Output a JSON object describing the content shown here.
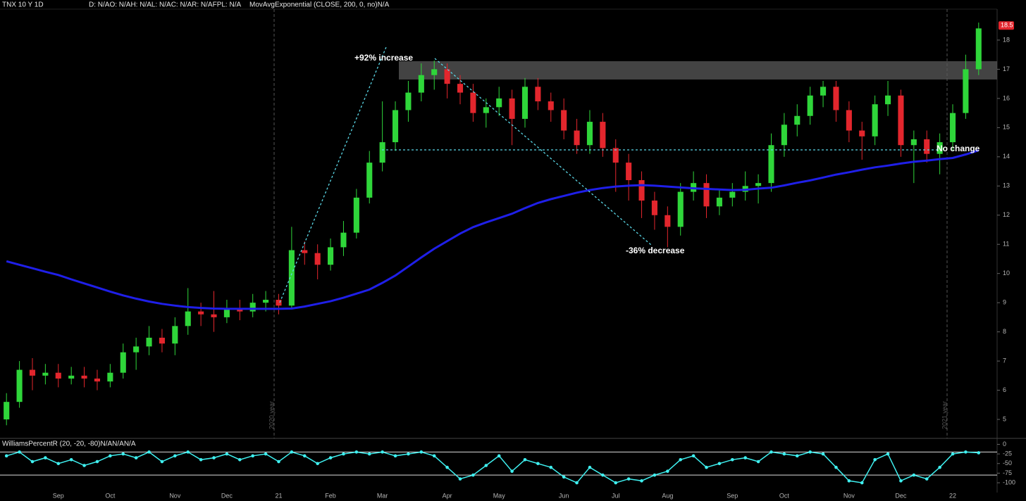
{
  "chart_data": [
    {
      "type": "candlestick",
      "title": "TNX 10 Y 1D",
      "info": "D: N/AO: N/AH: N/AL: N/AC: N/AR: N/AFPL: N/A",
      "annotations": [
        "+92% increase",
        "-36% decrease",
        "No change"
      ],
      "year_labels": [
        "2020 year",
        "2021 year"
      ],
      "last_price": 18.5,
      "up_color": "#2fd63a",
      "down_color": "#e3262d",
      "categories": [
        null,
        null,
        null,
        null,
        "Sep",
        null,
        null,
        null,
        "Oct",
        null,
        null,
        null,
        null,
        "Nov",
        null,
        null,
        null,
        "Dec",
        null,
        null,
        null,
        "21",
        null,
        null,
        null,
        "Feb",
        null,
        null,
        null,
        "Mar",
        null,
        null,
        null,
        null,
        "Apr",
        null,
        null,
        null,
        "May",
        null,
        null,
        null,
        null,
        "Jun",
        null,
        null,
        null,
        "Jul",
        null,
        null,
        null,
        "Aug",
        null,
        null,
        null,
        null,
        "Sep",
        null,
        null,
        null,
        "Oct",
        null,
        null,
        null,
        null,
        "Nov",
        null,
        null,
        null,
        "Dec",
        null,
        null,
        null,
        "22",
        null,
        null
      ],
      "open": [
        5.0,
        5.6,
        6.7,
        6.5,
        6.6,
        6.4,
        6.5,
        6.4,
        6.3,
        6.6,
        7.3,
        7.5,
        7.8,
        7.6,
        8.2,
        8.7,
        8.6,
        8.5,
        8.8,
        8.7,
        9.0,
        9.1,
        8.9,
        10.8,
        10.7,
        10.3,
        10.9,
        11.4,
        12.6,
        13.8,
        14.5,
        15.6,
        16.2,
        16.8,
        17.0,
        16.5,
        16.2,
        15.5,
        15.7,
        16.0,
        15.3,
        16.4,
        15.9,
        15.6,
        14.9,
        14.4,
        15.2,
        14.3,
        13.8,
        13.2,
        12.5,
        12.0,
        11.6,
        12.8,
        13.1,
        12.3,
        12.6,
        12.8,
        13.0,
        13.1,
        14.4,
        15.1,
        15.4,
        16.1,
        16.4,
        15.6,
        14.9,
        14.7,
        15.8,
        16.1,
        14.4,
        14.6,
        14.1,
        14.5,
        15.5,
        17.0
      ],
      "high": [
        5.9,
        7.0,
        7.1,
        6.9,
        6.9,
        6.8,
        6.8,
        6.7,
        6.9,
        7.6,
        7.8,
        8.2,
        8.1,
        8.5,
        9.5,
        9.0,
        9.4,
        9.1,
        9.1,
        9.3,
        9.4,
        9.3,
        11.6,
        11.1,
        11.0,
        11.2,
        11.8,
        12.9,
        14.2,
        15.9,
        15.9,
        16.6,
        17.2,
        17.3,
        17.2,
        16.8,
        16.5,
        16.0,
        16.4,
        16.3,
        16.7,
        16.7,
        16.2,
        16.0,
        15.3,
        15.6,
        15.5,
        14.6,
        14.1,
        13.5,
        12.8,
        12.3,
        13.1,
        13.5,
        13.4,
        12.9,
        13.1,
        13.5,
        13.4,
        14.8,
        15.5,
        15.8,
        16.4,
        16.6,
        16.6,
        15.9,
        15.2,
        16.1,
        16.6,
        16.3,
        14.9,
        14.9,
        14.8,
        15.8,
        17.5,
        18.6
      ],
      "low": [
        4.8,
        5.4,
        6.0,
        6.2,
        6.1,
        6.2,
        6.1,
        6.0,
        6.1,
        6.4,
        6.7,
        7.2,
        7.3,
        7.2,
        7.9,
        8.2,
        8.0,
        8.3,
        8.4,
        8.5,
        8.7,
        8.6,
        8.8,
        10.3,
        9.8,
        10.1,
        10.6,
        11.2,
        12.4,
        13.5,
        14.2,
        15.2,
        15.9,
        16.3,
        16.0,
        15.8,
        15.2,
        15.0,
        15.4,
        14.4,
        15.0,
        15.6,
        15.2,
        14.6,
        14.1,
        14.1,
        14.0,
        12.8,
        12.5,
        11.9,
        11.5,
        10.9,
        11.3,
        12.5,
        11.9,
        12.0,
        12.3,
        12.5,
        12.4,
        12.8,
        14.0,
        14.7,
        15.1,
        15.7,
        15.2,
        14.5,
        13.9,
        14.4,
        15.4,
        14.0,
        13.1,
        13.8,
        13.4,
        14.2,
        15.3,
        16.8
      ],
      "close": [
        5.6,
        6.7,
        6.5,
        6.6,
        6.4,
        6.5,
        6.4,
        6.3,
        6.6,
        7.3,
        7.5,
        7.8,
        7.6,
        8.2,
        8.7,
        8.6,
        8.5,
        8.8,
        8.7,
        9.0,
        9.1,
        8.9,
        10.8,
        10.7,
        10.3,
        10.9,
        11.4,
        12.6,
        13.8,
        14.5,
        15.6,
        16.2,
        16.8,
        17.0,
        16.5,
        16.2,
        15.5,
        15.7,
        16.0,
        15.3,
        16.4,
        15.9,
        15.6,
        14.9,
        14.4,
        15.2,
        14.3,
        13.8,
        13.2,
        12.5,
        12.0,
        11.6,
        12.8,
        13.1,
        12.3,
        12.6,
        12.8,
        13.0,
        13.1,
        14.4,
        15.1,
        15.4,
        16.1,
        16.4,
        15.6,
        14.9,
        14.7,
        15.8,
        16.1,
        14.4,
        14.6,
        14.1,
        14.5,
        15.5,
        17.0,
        18.4
      ],
      "series": [
        {
          "name": "MovAvgExponential (CLOSE, 200, 0, no)N/A",
          "color": "#1f1fe8",
          "values": [
            10.42,
            10.3,
            10.18,
            10.06,
            9.95,
            9.8,
            9.66,
            9.52,
            9.38,
            9.25,
            9.14,
            9.04,
            8.96,
            8.9,
            8.85,
            8.82,
            8.8,
            8.79,
            8.79,
            8.79,
            8.79,
            8.79,
            8.8,
            8.87,
            8.96,
            9.05,
            9.17,
            9.31,
            9.45,
            9.68,
            9.93,
            10.24,
            10.55,
            10.85,
            11.11,
            11.37,
            11.59,
            11.75,
            11.9,
            12.05,
            12.24,
            12.42,
            12.55,
            12.66,
            12.77,
            12.86,
            12.93,
            12.98,
            13.01,
            13.03,
            13.01,
            12.98,
            12.95,
            12.92,
            12.9,
            12.88,
            12.86,
            12.87,
            12.91,
            12.94,
            13.02,
            13.11,
            13.19,
            13.29,
            13.39,
            13.47,
            13.56,
            13.64,
            13.7,
            13.77,
            13.83,
            13.87,
            13.92,
            13.96,
            14.08,
            14.22
          ]
        }
      ],
      "ylim": [
        4.35,
        19.06
      ],
      "yticks": [
        5,
        6,
        7,
        8,
        9,
        10,
        11,
        12,
        13,
        14,
        15,
        16,
        17,
        18
      ]
    },
    {
      "type": "line",
      "series": [
        {
          "name": "WilliamsPercentR (20, -20, -80)N/AN/AN/A",
          "color": "#3ff0f0",
          "values": [
            -30,
            -20,
            -45,
            -35,
            -50,
            -40,
            -55,
            -45,
            -30,
            -25,
            -35,
            -20,
            -45,
            -30,
            -20,
            -40,
            -35,
            -25,
            -40,
            -30,
            -25,
            -45,
            -20,
            -30,
            -50,
            -35,
            -25,
            -20,
            -25,
            -20,
            -30,
            -25,
            -20,
            -30,
            -60,
            -90,
            -80,
            -55,
            -30,
            -70,
            -40,
            -50,
            -60,
            -85,
            -100,
            -60,
            -80,
            -100,
            -90,
            -95,
            -80,
            -70,
            -40,
            -30,
            -60,
            -50,
            -40,
            -35,
            -45,
            -20,
            -25,
            -30,
            -20,
            -25,
            -60,
            -95,
            -100,
            -40,
            -25,
            -95,
            -80,
            -90,
            -60,
            -25,
            -20,
            -22
          ]
        }
      ],
      "levels": [
        -20,
        -80
      ],
      "ylim": [
        -120,
        10
      ],
      "yticks": [
        0,
        -25,
        -50,
        -75,
        -100
      ]
    }
  ]
}
